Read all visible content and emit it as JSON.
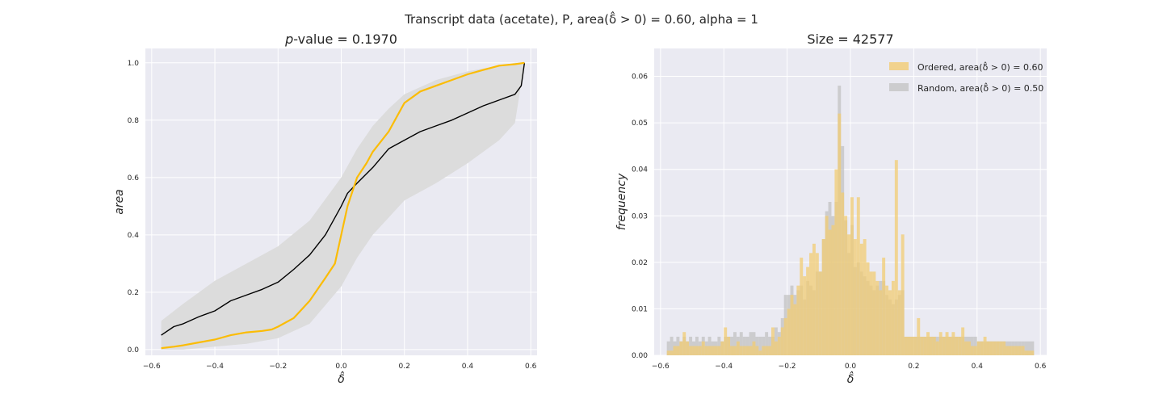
{
  "figure": {
    "suptitle": "Transcript data (acetate), P, area(δ̂ > 0) = 0.60, alpha = 1"
  },
  "colors": {
    "background": "#eaeaf2",
    "grid": "#ffffff",
    "ordered": "#fbbc05",
    "random_line": "#000000",
    "band": "#dcdcdc",
    "hist_ordered": "#f2cc73",
    "hist_random": "#bfbfbf"
  },
  "chart_data": [
    {
      "type": "line",
      "title_prefix": "p",
      "title_rest": "-value = 0.1970",
      "xlabel": "δ̂",
      "ylabel": "area",
      "xlim": [
        -0.62,
        0.62
      ],
      "ylim": [
        -0.02,
        1.05
      ],
      "xticks": [
        -0.6,
        -0.4,
        -0.2,
        0.0,
        0.2,
        0.4,
        0.6
      ],
      "xtick_labels": [
        "−0.6",
        "−0.4",
        "−0.2",
        "0.0",
        "0.2",
        "0.4",
        "0.6"
      ],
      "yticks": [
        0.0,
        0.2,
        0.4,
        0.6,
        0.8,
        1.0
      ],
      "ytick_labels": [
        "0.0",
        "0.2",
        "0.4",
        "0.6",
        "0.8",
        "1.0"
      ],
      "grid": true,
      "band": {
        "name": "random envelope",
        "x": [
          -0.57,
          -0.5,
          -0.4,
          -0.3,
          -0.2,
          -0.1,
          0.0,
          0.05,
          0.1,
          0.15,
          0.2,
          0.3,
          0.4,
          0.5,
          0.55,
          0.58
        ],
        "upper": [
          0.1,
          0.16,
          0.24,
          0.3,
          0.36,
          0.45,
          0.6,
          0.7,
          0.78,
          0.84,
          0.89,
          0.94,
          0.97,
          0.99,
          1.0,
          1.0
        ],
        "lower": [
          0.0,
          0.0,
          0.01,
          0.02,
          0.04,
          0.09,
          0.22,
          0.32,
          0.4,
          0.46,
          0.52,
          0.58,
          0.65,
          0.73,
          0.79,
          1.0
        ]
      },
      "series": [
        {
          "key": "random_mean",
          "x": [
            -0.57,
            -0.53,
            -0.5,
            -0.45,
            -0.4,
            -0.35,
            -0.3,
            -0.25,
            -0.2,
            -0.15,
            -0.1,
            -0.05,
            0.0,
            0.02,
            0.05,
            0.1,
            0.15,
            0.2,
            0.25,
            0.3,
            0.35,
            0.4,
            0.45,
            0.5,
            0.55,
            0.57,
            0.58
          ],
          "y": [
            0.05,
            0.08,
            0.09,
            0.115,
            0.135,
            0.17,
            0.19,
            0.21,
            0.235,
            0.28,
            0.33,
            0.4,
            0.5,
            0.545,
            0.58,
            0.635,
            0.7,
            0.73,
            0.76,
            0.78,
            0.8,
            0.825,
            0.85,
            0.87,
            0.89,
            0.92,
            1.0
          ]
        },
        {
          "key": "ordered",
          "x": [
            -0.57,
            -0.53,
            -0.5,
            -0.45,
            -0.4,
            -0.35,
            -0.3,
            -0.25,
            -0.22,
            -0.2,
            -0.15,
            -0.1,
            -0.05,
            -0.02,
            0.0,
            0.02,
            0.05,
            0.08,
            0.1,
            0.15,
            0.2,
            0.25,
            0.3,
            0.35,
            0.4,
            0.45,
            0.5,
            0.55,
            0.58
          ],
          "y": [
            0.005,
            0.01,
            0.015,
            0.025,
            0.035,
            0.05,
            0.06,
            0.065,
            0.07,
            0.08,
            0.11,
            0.17,
            0.25,
            0.3,
            0.4,
            0.5,
            0.6,
            0.65,
            0.69,
            0.76,
            0.86,
            0.9,
            0.92,
            0.94,
            0.96,
            0.975,
            0.99,
            0.995,
            1.0
          ]
        }
      ]
    },
    {
      "type": "histogram",
      "title": "Size = 42577",
      "xlabel": "δ̂",
      "ylabel": "frequency",
      "xlim": [
        -0.62,
        0.62
      ],
      "ylim": [
        0.0,
        0.066
      ],
      "xticks": [
        -0.6,
        -0.4,
        -0.2,
        0.0,
        0.2,
        0.4,
        0.6
      ],
      "xtick_labels": [
        "−0.6",
        "−0.4",
        "−0.2",
        "0.0",
        "0.2",
        "0.4",
        "0.6"
      ],
      "yticks": [
        0.0,
        0.01,
        0.02,
        0.03,
        0.04,
        0.05,
        0.06
      ],
      "ytick_labels": [
        "0.00",
        "0.01",
        "0.02",
        "0.03",
        "0.04",
        "0.05",
        "0.06"
      ],
      "grid": true,
      "legend_position": "top-right",
      "bin_start": -0.58,
      "bin_width": 0.01,
      "series": [
        {
          "key": "ordered",
          "name": "Ordered, area(δ̂ > 0) = 0.60",
          "values": [
            0.001,
            0.001,
            0.002,
            0.002,
            0.003,
            0.005,
            0.003,
            0.002,
            0.002,
            0.002,
            0.002,
            0.003,
            0.002,
            0.002,
            0.002,
            0.002,
            0.002,
            0.003,
            0.006,
            0.004,
            0.002,
            0.002,
            0.003,
            0.002,
            0.002,
            0.002,
            0.002,
            0.003,
            0.002,
            0.001,
            0.002,
            0.002,
            0.002,
            0.006,
            0.003,
            0.004,
            0.006,
            0.008,
            0.01,
            0.013,
            0.011,
            0.015,
            0.021,
            0.017,
            0.019,
            0.022,
            0.024,
            0.022,
            0.018,
            0.025,
            0.03,
            0.027,
            0.028,
            0.04,
            0.052,
            0.035,
            0.03,
            0.026,
            0.034,
            0.025,
            0.034,
            0.024,
            0.025,
            0.02,
            0.018,
            0.018,
            0.016,
            0.014,
            0.021,
            0.015,
            0.014,
            0.016,
            0.042,
            0.014,
            0.026,
            0.004,
            0.004,
            0.004,
            0.004,
            0.008,
            0.004,
            0.004,
            0.005,
            0.004,
            0.004,
            0.003,
            0.005,
            0.004,
            0.005,
            0.004,
            0.005,
            0.004,
            0.004,
            0.006,
            0.003,
            0.003,
            0.002,
            0.002,
            0.003,
            0.003,
            0.004,
            0.003,
            0.003,
            0.003,
            0.003,
            0.003,
            0.003,
            0.002,
            0.002,
            0.002,
            0.002,
            0.002,
            0.002,
            0.001,
            0.001,
            0.001
          ]
        },
        {
          "key": "random",
          "name": "Random, area(δ̂ > 0) = 0.50",
          "values": [
            0.003,
            0.004,
            0.003,
            0.004,
            0.003,
            0.004,
            0.003,
            0.004,
            0.003,
            0.004,
            0.003,
            0.004,
            0.003,
            0.004,
            0.003,
            0.003,
            0.004,
            0.003,
            0.004,
            0.004,
            0.004,
            0.005,
            0.004,
            0.005,
            0.004,
            0.004,
            0.005,
            0.005,
            0.004,
            0.004,
            0.004,
            0.005,
            0.004,
            0.004,
            0.006,
            0.005,
            0.008,
            0.013,
            0.013,
            0.015,
            0.013,
            0.014,
            0.015,
            0.012,
            0.016,
            0.015,
            0.014,
            0.018,
            0.018,
            0.025,
            0.031,
            0.033,
            0.03,
            0.033,
            0.058,
            0.045,
            0.029,
            0.022,
            0.028,
            0.019,
            0.02,
            0.018,
            0.017,
            0.016,
            0.015,
            0.014,
            0.015,
            0.016,
            0.016,
            0.013,
            0.012,
            0.011,
            0.012,
            0.013,
            0.014,
            0.004,
            0.004,
            0.004,
            0.004,
            0.004,
            0.004,
            0.004,
            0.004,
            0.004,
            0.004,
            0.004,
            0.004,
            0.004,
            0.004,
            0.004,
            0.004,
            0.004,
            0.004,
            0.004,
            0.004,
            0.004,
            0.004,
            0.004,
            0.003,
            0.003,
            0.003,
            0.003,
            0.003,
            0.003,
            0.003,
            0.003,
            0.003,
            0.003,
            0.003,
            0.003,
            0.003,
            0.003,
            0.003,
            0.003,
            0.003,
            0.003
          ]
        }
      ]
    }
  ]
}
